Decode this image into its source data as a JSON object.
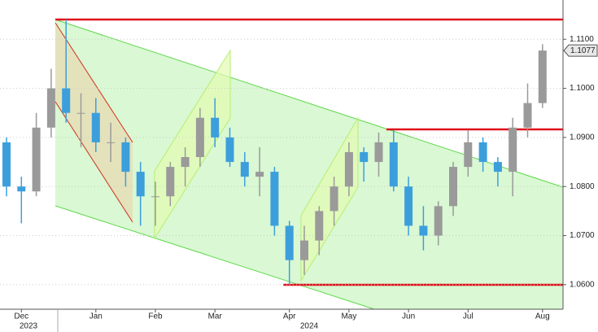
{
  "chart_data": {
    "type": "candlestick",
    "categories": [
      null,
      "Dec",
      null,
      null,
      null,
      null,
      "Jan",
      null,
      null,
      null,
      "Feb",
      null,
      null,
      null,
      "Mar",
      null,
      null,
      null,
      null,
      "Apr",
      null,
      null,
      null,
      "May",
      null,
      null,
      null,
      "Jun",
      null,
      null,
      null,
      "Jul",
      null,
      null,
      null,
      null,
      "Aug"
    ],
    "open": [
      1.089,
      1.08,
      1.079,
      1.092,
      1.1,
      1.095,
      1.095,
      1.089,
      1.089,
      1.083,
      1.078,
      1.078,
      1.084,
      1.086,
      1.094,
      1.09,
      1.085,
      1.082,
      1.083,
      1.072,
      1.065,
      1.069,
      1.075,
      1.08,
      1.087,
      1.085,
      1.089,
      1.08,
      1.072,
      1.07,
      1.076,
      1.084,
      1.089,
      1.085,
      1.083,
      1.092,
      1.097
    ],
    "high": [
      1.09,
      1.082,
      1.095,
      1.104,
      1.114,
      1.099,
      1.098,
      1.093,
      1.09,
      1.085,
      1.081,
      1.085,
      1.088,
      1.096,
      1.098,
      1.092,
      1.087,
      1.088,
      1.084,
      1.073,
      1.072,
      1.076,
      1.082,
      1.089,
      1.088,
      1.091,
      1.0915,
      1.082,
      1.076,
      1.077,
      1.085,
      1.0915,
      1.09,
      1.086,
      1.094,
      1.101,
      1.109
    ],
    "low": [
      1.078,
      1.0725,
      1.078,
      1.09,
      1.093,
      1.088,
      1.087,
      1.085,
      1.08,
      1.072,
      1.072,
      1.076,
      1.08,
      1.084,
      1.088,
      1.084,
      1.08,
      1.078,
      1.07,
      1.06,
      1.062,
      1.066,
      1.072,
      1.078,
      1.081,
      1.082,
      1.079,
      1.07,
      1.067,
      1.068,
      1.074,
      1.082,
      1.083,
      1.08,
      1.078,
      1.09,
      1.096
    ],
    "close": [
      1.08,
      1.079,
      1.092,
      1.1,
      1.095,
      1.095,
      1.089,
      1.089,
      1.083,
      1.078,
      1.078,
      1.084,
      1.086,
      1.094,
      1.09,
      1.085,
      1.082,
      1.083,
      1.072,
      1.065,
      1.069,
      1.075,
      1.08,
      1.087,
      1.085,
      1.089,
      1.08,
      1.072,
      1.07,
      1.076,
      1.084,
      1.089,
      1.085,
      1.083,
      1.092,
      1.097,
      1.1077
    ],
    "up_color": "#9a9a9a",
    "down_color": "#3c9fdc",
    "ylim": [
      1.055,
      1.118
    ],
    "yticks": [
      {
        "value": 1.06,
        "label": "1.0600"
      },
      {
        "value": 1.07,
        "label": "1.0700"
      },
      {
        "value": 1.08,
        "label": "1.0800"
      },
      {
        "value": 1.09,
        "label": "1.0900"
      },
      {
        "value": 1.1,
        "label": "1.1000"
      },
      {
        "value": 1.11,
        "label": "1.1100"
      }
    ],
    "year_labels": [
      "2023",
      "2024"
    ],
    "last_label": "1.1077"
  }
}
